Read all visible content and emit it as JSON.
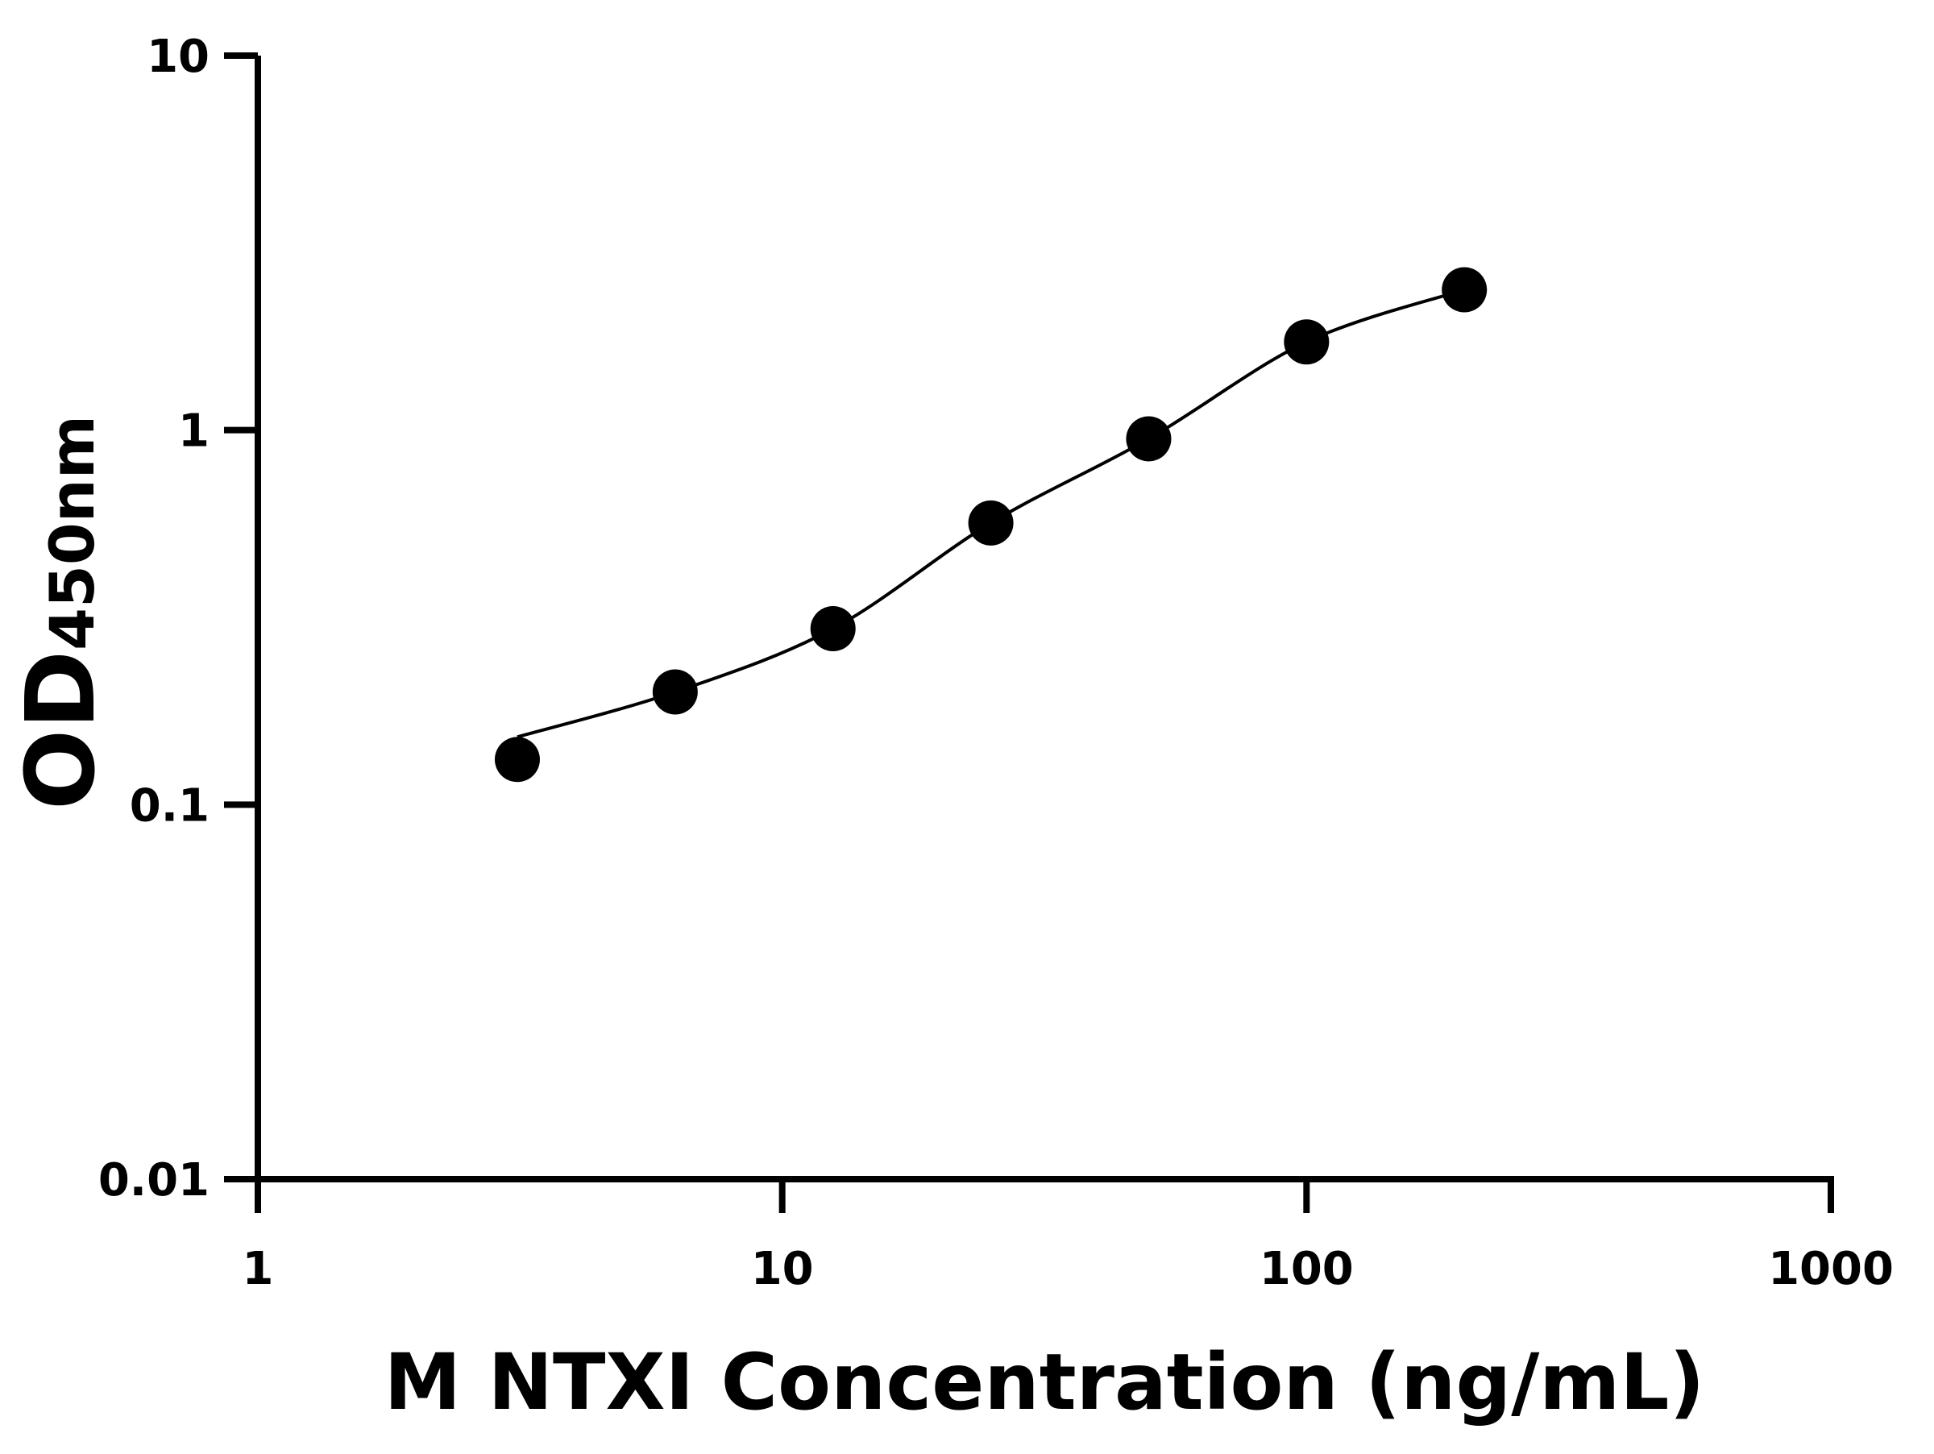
{
  "chart_data": {
    "type": "scatter",
    "title": "",
    "xlabel": "M NTXI Concentration (ng/mL)",
    "ylabel_main": "OD",
    "ylabel_sub": "450nm",
    "xscale": "log",
    "yscale": "log",
    "xlim": [
      1,
      1000
    ],
    "ylim": [
      0.01,
      10
    ],
    "xticks": [
      "1",
      "10",
      "100",
      "1000"
    ],
    "xtick_values": [
      1,
      10,
      100,
      1000
    ],
    "yticks": [
      "0.01",
      "0.1",
      "1",
      "10"
    ],
    "ytick_values": [
      0.01,
      0.1,
      1,
      10
    ],
    "grid": false,
    "series": [
      {
        "x": [
          3.125,
          6.25,
          12.5,
          25,
          50,
          100,
          200
        ],
        "y": [
          0.132,
          0.2,
          0.295,
          0.565,
          0.948,
          1.72,
          2.37
        ],
        "fit_curve": true
      }
    ],
    "colors": {
      "marker": "#000000",
      "line": "#000000",
      "axis": "#000000"
    }
  }
}
